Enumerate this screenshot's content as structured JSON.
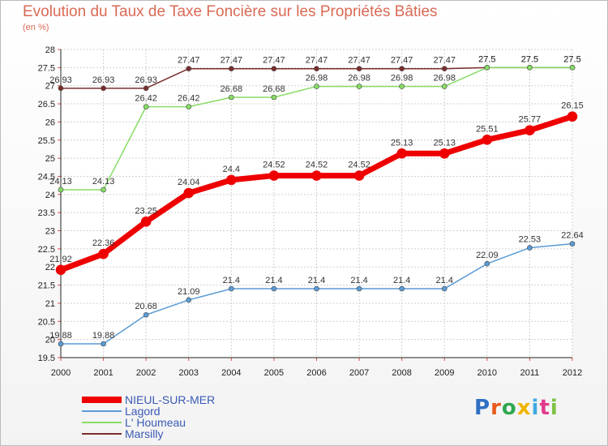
{
  "chart_data": {
    "type": "line",
    "title": "Evolution du Taux de Taxe Foncière sur les Propriétés Bâties",
    "subtitle": "(en %)",
    "xlabel": "",
    "ylabel": "(en %)",
    "ylim": [
      19.5,
      28
    ],
    "y_ticks": [
      "19.5",
      "20",
      "20.5",
      "21",
      "21.5",
      "22",
      "22.5",
      "23",
      "23.5",
      "24",
      "24.5",
      "25",
      "25.5",
      "26",
      "26.5",
      "27",
      "27.5",
      "28"
    ],
    "categories": [
      "2000",
      "2001",
      "2002",
      "2003",
      "2004",
      "2005",
      "2006",
      "2007",
      "2008",
      "2009",
      "2010",
      "2011",
      "2012"
    ],
    "grid": true,
    "series": [
      {
        "name": "Marsilly",
        "color": "#7a2e2e",
        "width": 1.5,
        "values": [
          26.93,
          26.93,
          26.93,
          27.47,
          27.47,
          27.47,
          27.47,
          27.47,
          27.47,
          27.47,
          27.5,
          27.5,
          27.5
        ],
        "labels": [
          "26.93",
          "26.93",
          "26.93",
          "27.47",
          "27.47",
          "27.47",
          "27.47",
          "27.47",
          "27.47",
          "27.47",
          "27.5",
          "27.5",
          "27.5"
        ]
      },
      {
        "name": "L' Houmeau",
        "color": "#88dd66",
        "width": 1.5,
        "values": [
          24.13,
          24.13,
          26.42,
          26.42,
          26.68,
          26.68,
          26.98,
          26.98,
          26.98,
          26.98,
          27.5,
          27.5,
          27.5
        ],
        "labels": [
          "24.13",
          "24.13",
          "26.42",
          "26.42",
          "26.68",
          "26.68",
          "26.98",
          "26.98",
          "26.98",
          "26.98",
          "27.5",
          "27.5",
          "27.5"
        ]
      },
      {
        "name": "Lagord",
        "color": "#5b9bd5",
        "width": 1.5,
        "values": [
          19.88,
          19.88,
          20.68,
          21.09,
          21.4,
          21.4,
          21.4,
          21.4,
          21.4,
          21.4,
          22.09,
          22.53,
          22.64
        ],
        "labels": [
          "19.88",
          "19.88",
          "20.68",
          "21.09",
          "21.4",
          "21.4",
          "21.4",
          "21.4",
          "21.4",
          "21.4",
          "22.09",
          "22.53",
          "22.64"
        ]
      },
      {
        "name": "NIEUL-SUR-MER",
        "color": "#ee0000",
        "width": 7,
        "values": [
          21.92,
          22.36,
          23.25,
          24.04,
          24.4,
          24.52,
          24.52,
          24.52,
          25.13,
          25.13,
          25.51,
          25.77,
          26.15
        ],
        "labels": [
          "21.92",
          "22.36",
          "23.25",
          "24.04",
          "24.4",
          "24.52",
          "24.52",
          "24.52",
          "25.13",
          "25.13",
          "25.51",
          "25.77",
          "26.15"
        ]
      }
    ],
    "legend": [
      "NIEUL-SUR-MER",
      "Lagord",
      "L' Houmeau",
      "Marsilly"
    ],
    "legend_position": "bottom-left"
  },
  "logo": {
    "letters": [
      "P",
      "r",
      "o",
      "x",
      "i",
      "t",
      "i"
    ],
    "colors": [
      "#2f6fc4",
      "#e85a1c",
      "#2fa84f",
      "#f0b400",
      "#3fa9e0",
      "#e03a8c",
      "#7cc242"
    ]
  }
}
